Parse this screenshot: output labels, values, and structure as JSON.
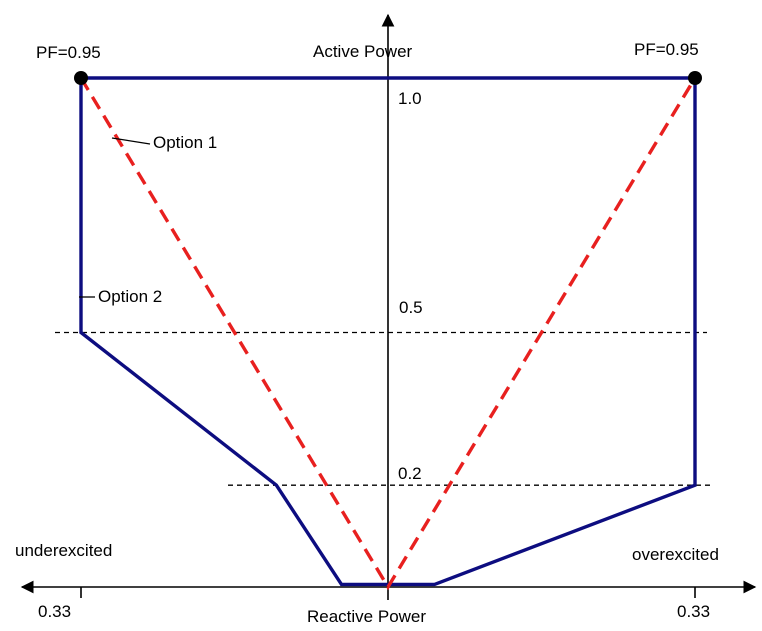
{
  "colors": {
    "axis": "#000000",
    "option1": "#e8201f",
    "option2": "#0d0d80",
    "guide": "#000000"
  },
  "labels": {
    "y_axis": "Active Power",
    "x_axis": "Reactive Power",
    "left_side": "underexcited",
    "right_side": "overexcited",
    "pf_left": "PF=0.95",
    "pf_right": "PF=0.95",
    "level_top": "1.0",
    "level_mid": "0.5",
    "level_low": "0.2",
    "tick_left": "0.33",
    "tick_right": "0.33",
    "option1": "Option 1",
    "option2": "Option 2"
  },
  "chart_data": {
    "type": "line",
    "title": "",
    "xlabel": "Reactive Power",
    "ylabel": "Active Power",
    "x_side_labels": {
      "negative": "underexcited",
      "positive": "overexcited"
    },
    "xlim": [
      -0.33,
      0.33
    ],
    "ylim": [
      0,
      1.0
    ],
    "x_ticks": [
      {
        "value": -0.33,
        "label": "0.33"
      },
      {
        "value": 0.33,
        "label": "0.33"
      }
    ],
    "y_levels": [
      0.2,
      0.5,
      1.0
    ],
    "series": [
      {
        "name": "Option 1",
        "style": "dashed",
        "color": "#e8201f",
        "points": [
          [
            -0.33,
            1.0
          ],
          [
            0,
            0
          ],
          [
            0.33,
            1.0
          ]
        ]
      },
      {
        "name": "Option 2",
        "style": "solid",
        "color": "#0d0d80",
        "points": [
          [
            -0.33,
            1.0
          ],
          [
            -0.33,
            0.5
          ],
          [
            -0.12,
            0.2
          ],
          [
            -0.05,
            0.005
          ],
          [
            0.05,
            0.005
          ],
          [
            0.33,
            0.2
          ],
          [
            0.33,
            1.0
          ],
          [
            -0.33,
            1.0
          ]
        ]
      }
    ],
    "markers": [
      {
        "label": "PF=0.95",
        "x": -0.33,
        "y": 1.0
      },
      {
        "label": "PF=0.95",
        "x": 0.33,
        "y": 1.0
      }
    ]
  }
}
